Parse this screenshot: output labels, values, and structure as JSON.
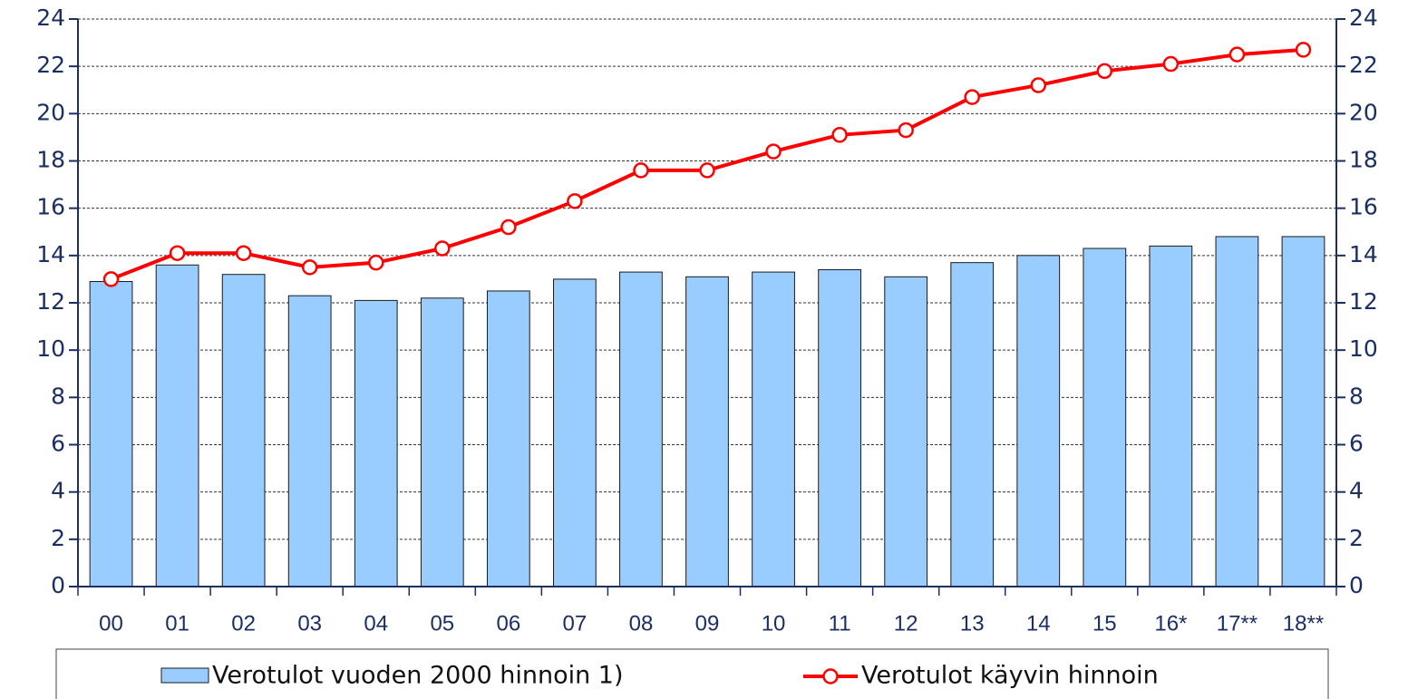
{
  "chart_data": {
    "type": "bar_line",
    "categories": [
      "00",
      "01",
      "02",
      "03",
      "04",
      "05",
      "06",
      "07",
      "08",
      "09",
      "10",
      "11",
      "12",
      "13",
      "14",
      "15",
      "16*",
      "17**",
      "18**"
    ],
    "series": [
      {
        "name": "Verotulot vuoden 2000 hinnoin 1)",
        "type": "bar",
        "color": "#99ccff",
        "values": [
          12.9,
          13.6,
          13.2,
          12.3,
          12.1,
          12.2,
          12.5,
          13.0,
          13.3,
          13.1,
          13.3,
          13.4,
          13.1,
          13.7,
          14.0,
          14.3,
          14.4,
          14.8,
          14.8
        ]
      },
      {
        "name": "Verotulot käyvin hinnoin",
        "type": "line",
        "color": "#ff0000",
        "axis": "y2",
        "values": [
          13.0,
          14.1,
          14.1,
          13.5,
          13.7,
          14.3,
          15.2,
          16.3,
          17.6,
          17.6,
          18.4,
          19.1,
          19.3,
          20.7,
          21.2,
          21.8,
          22.1,
          22.5,
          22.7
        ]
      }
    ],
    "ylim": [
      0,
      24
    ],
    "yticks": [
      0,
      2,
      4,
      6,
      8,
      10,
      12,
      14,
      16,
      18,
      20,
      22,
      24
    ],
    "y2lim": [
      0,
      24
    ],
    "y2ticks": [
      0,
      2,
      4,
      6,
      8,
      10,
      12,
      14,
      16,
      18,
      20,
      22,
      24
    ],
    "grid": true,
    "legend": "bottom"
  }
}
